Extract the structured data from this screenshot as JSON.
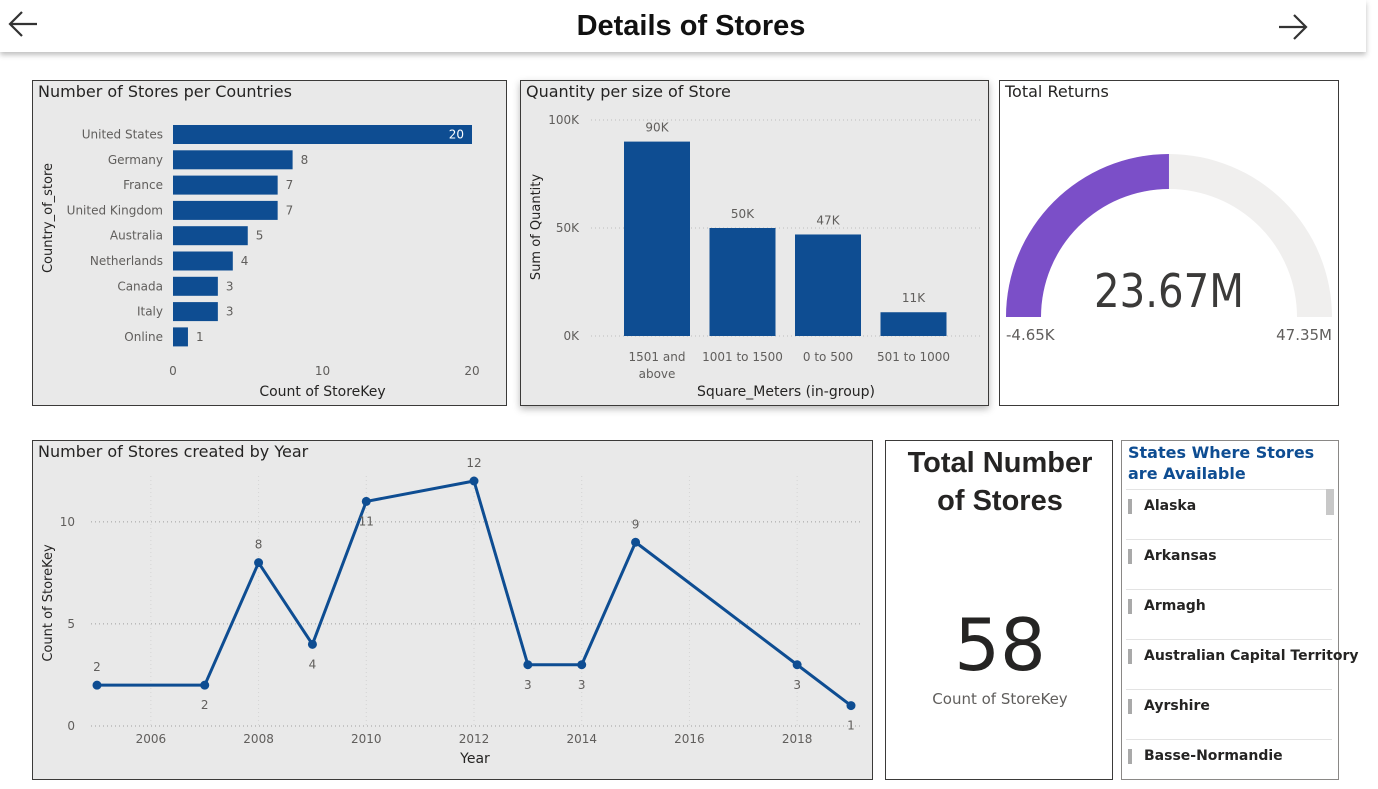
{
  "header": {
    "title": "Details of Stores",
    "back_icon": "arrow-left-icon",
    "forward_icon": "arrow-right-icon"
  },
  "colors": {
    "bar": "#0e4d92",
    "line": "#0e4d92",
    "gauge_fill": "#7b4fc8",
    "gauge_track": "#f0efee",
    "panel_gray": "#e9e9e9"
  },
  "stores_per_country": {
    "title": "Number of Stores per Countries",
    "chart_data": {
      "type": "bar",
      "orientation": "horizontal",
      "title": "Number of Stores per Countries",
      "categories": [
        "United States",
        "Germany",
        "France",
        "United Kingdom",
        "Australia",
        "Netherlands",
        "Canada",
        "Italy",
        "Online"
      ],
      "values": [
        20,
        8,
        7,
        7,
        5,
        4,
        3,
        3,
        1
      ],
      "xlabel": "Count of StoreKey",
      "ylabel": "Country_of_store",
      "xticks": [
        "0",
        "10",
        "20"
      ],
      "xlim": [
        0,
        20
      ],
      "grid": false
    }
  },
  "quantity_per_size": {
    "title": "Quantity per size of Store",
    "chart_data": {
      "type": "bar",
      "title": "Quantity per size of Store",
      "categories": [
        "1501 and above",
        "1001 to 1500",
        "0 to 500",
        "501 to 1000"
      ],
      "category_lines": [
        [
          "1501 and",
          "above"
        ],
        [
          "1001 to 1500"
        ],
        [
          "0 to 500"
        ],
        [
          "501 to 1000"
        ]
      ],
      "values": [
        90000,
        50000,
        47000,
        11000
      ],
      "labels": [
        "90K",
        "50K",
        "47K",
        "11K"
      ],
      "xlabel": "Square_Meters (in-group)",
      "ylabel": "Sum of Quantity",
      "yticks": [
        "0K",
        "50K",
        "100K"
      ],
      "ylim": [
        0,
        100000
      ],
      "grid": true
    }
  },
  "total_returns": {
    "title": "Total Returns",
    "value_label": "23.67M",
    "min_label": "-4.65K",
    "max_label": "47.35M",
    "value": 23670000,
    "min": -4650,
    "max": 47350000
  },
  "stores_by_year": {
    "title": "Number of Stores created by Year",
    "chart_data": {
      "type": "line",
      "title": "Number of Stores created by Year",
      "x": [
        2005,
        2007,
        2008,
        2009,
        2010,
        2012,
        2013,
        2014,
        2015,
        2018,
        2019
      ],
      "y": [
        2,
        2,
        8,
        4,
        11,
        12,
        3,
        3,
        9,
        3,
        1
      ],
      "labels": [
        "2",
        "2",
        "8",
        "4",
        "11",
        "12",
        "3",
        "3",
        "9",
        "3",
        "1"
      ],
      "xlabel": "Year",
      "ylabel": "Count of StoreKey",
      "xticks": [
        "2006",
        "2008",
        "2010",
        "2012",
        "2014",
        "2016",
        "2018"
      ],
      "yticks": [
        "0",
        "5",
        "10"
      ],
      "xlim": [
        2005,
        2019
      ],
      "ylim": [
        0,
        12
      ],
      "grid": true
    }
  },
  "total_stores": {
    "title": "Total Number of Stores",
    "value": "58",
    "caption": "Count of StoreKey"
  },
  "states_slicer": {
    "title": "States Where Stores are Available",
    "items": [
      "Alaska",
      "Arkansas",
      "Armagh",
      "Australian Capital Territory",
      "Ayrshire",
      "Basse-Normandie"
    ]
  }
}
